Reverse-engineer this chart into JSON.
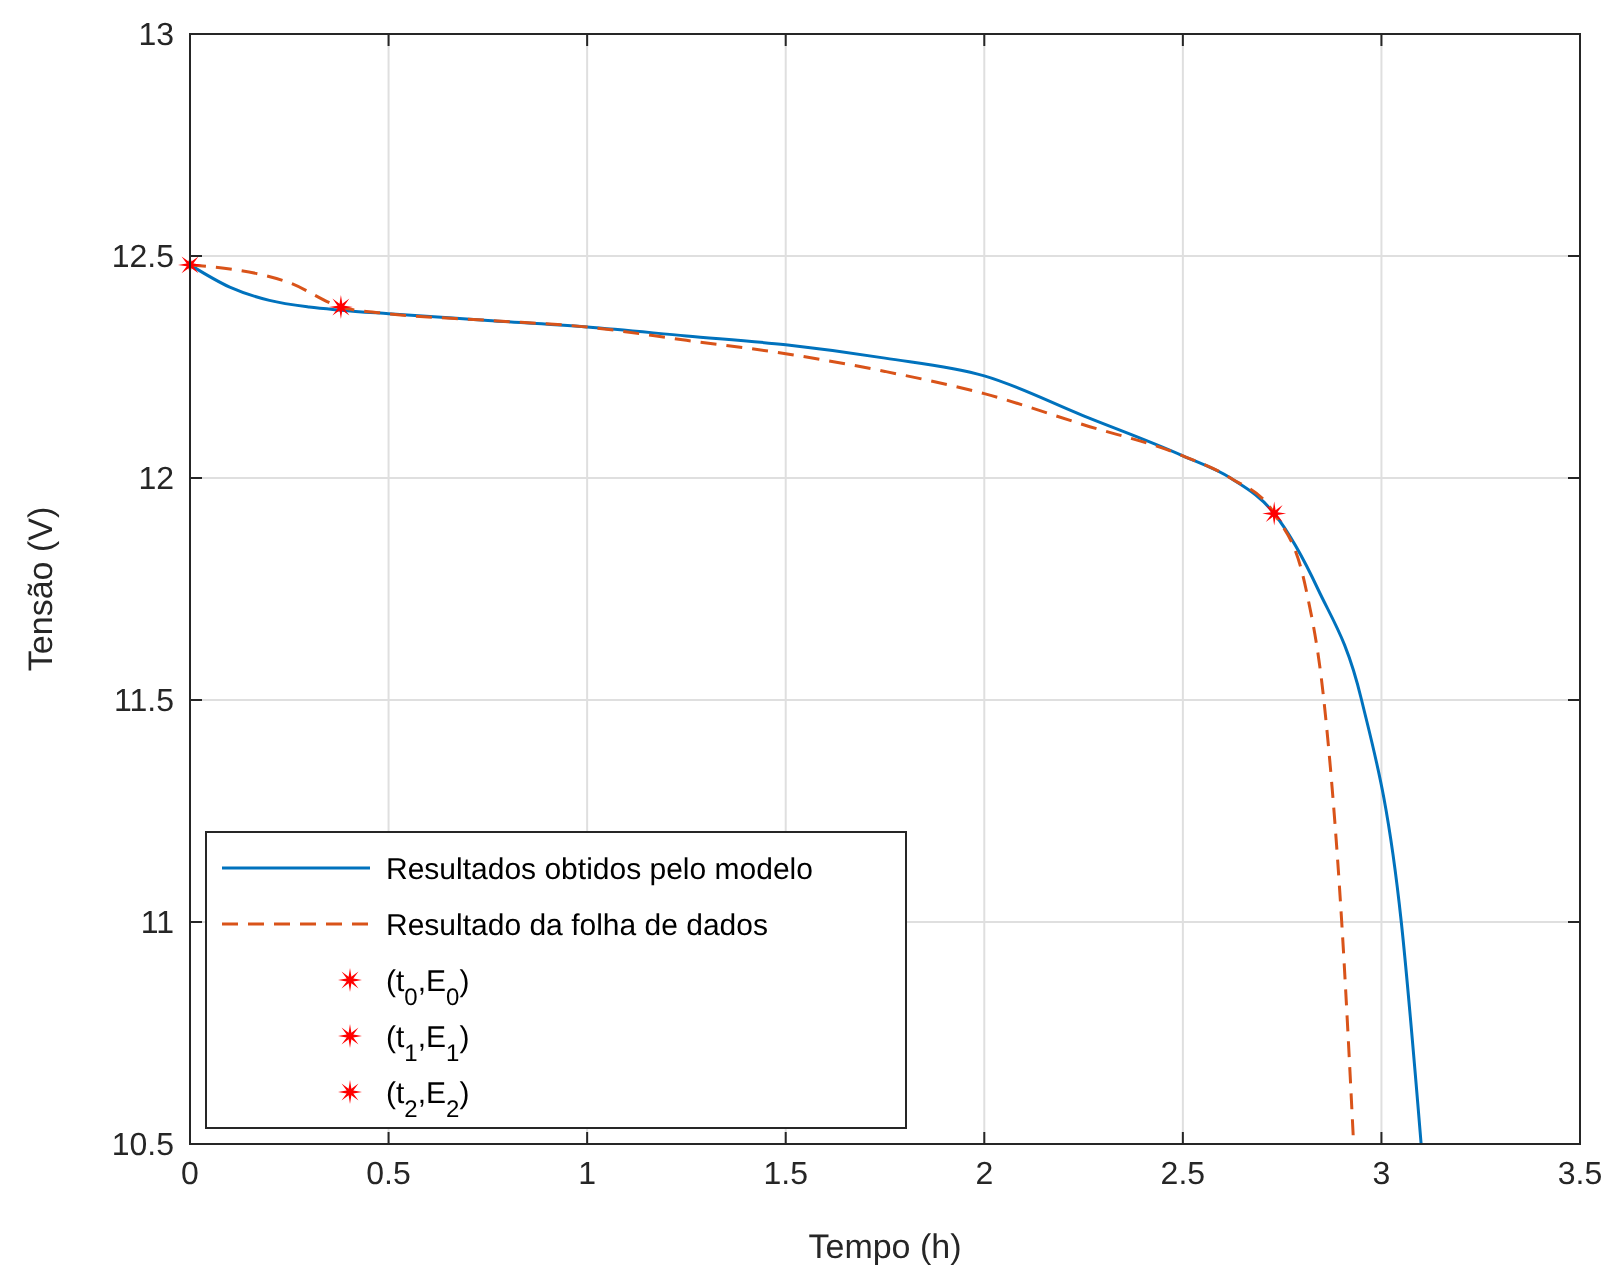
{
  "chart_data": {
    "type": "line",
    "xlabel": "Tempo (h)",
    "ylabel": "Tensão (V)",
    "xlim": [
      0,
      3.5
    ],
    "ylim": [
      10.5,
      13
    ],
    "xticks": [
      0,
      0.5,
      1,
      1.5,
      2,
      2.5,
      3,
      3.5
    ],
    "yticks": [
      10.5,
      11,
      11.5,
      12,
      12.5,
      13
    ],
    "grid": true,
    "legend": "bottom left",
    "series": [
      {
        "name": "Resultados obtidos pelo modelo",
        "color": "#0072bd",
        "line_style": "solid",
        "marker": "none",
        "x": [
          0,
          0.1,
          0.2,
          0.3,
          0.38,
          0.5,
          0.75,
          1,
          1.25,
          1.5,
          1.75,
          2,
          2.25,
          2.5,
          2.62,
          2.73,
          2.84,
          2.95,
          3.05,
          3.1
        ],
        "values": [
          12.48,
          12.43,
          12.4,
          12.385,
          12.378,
          12.37,
          12.355,
          12.34,
          12.32,
          12.3,
          12.27,
          12.23,
          12.14,
          12.05,
          12.0,
          11.92,
          11.75,
          11.5,
          11.0,
          10.5
        ]
      },
      {
        "name": "Resultado da folha de dados",
        "color": "#d95319",
        "line_style": "dashed",
        "marker": "none",
        "x": [
          0,
          0.25,
          0.38,
          0.5,
          0.75,
          1,
          1.25,
          1.5,
          1.75,
          2,
          2.25,
          2.5,
          2.62,
          2.73,
          2.81,
          2.855,
          2.9,
          2.93
        ],
        "values": [
          12.48,
          12.44,
          12.385,
          12.37,
          12.355,
          12.34,
          12.31,
          12.28,
          12.24,
          12.19,
          12.12,
          12.05,
          12.0,
          11.92,
          11.75,
          11.5,
          11.0,
          10.5
        ]
      },
      {
        "name": "(t$_{0}$,E$_{0}$)",
        "type": "scatter",
        "color": "#ff0000",
        "marker": "star",
        "x": [
          0
        ],
        "values": [
          12.48
        ]
      },
      {
        "name": "(t$_{1}$,E$_{1}$)",
        "type": "scatter",
        "color": "#ff0000",
        "marker": "star",
        "x": [
          0.38
        ],
        "values": [
          12.385
        ]
      },
      {
        "name": "(t$_{2}$,E$_{2}$)",
        "type": "scatter",
        "color": "#ff0000",
        "marker": "star",
        "x": [
          2.73
        ],
        "values": [
          11.92
        ]
      }
    ]
  }
}
